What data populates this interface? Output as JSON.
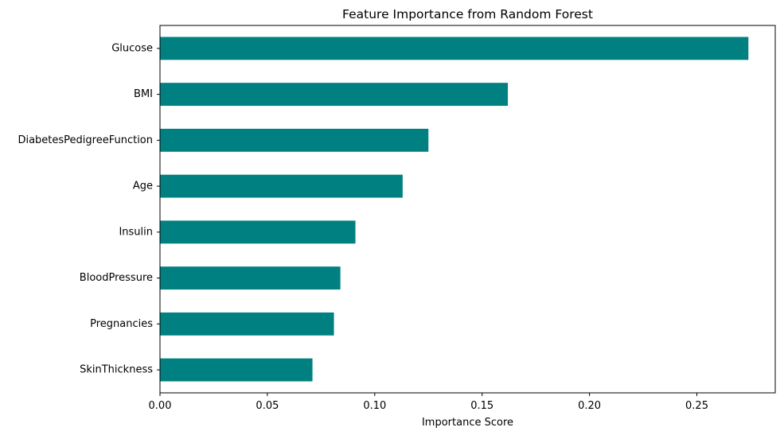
{
  "chart_data": {
    "type": "bar",
    "orientation": "horizontal",
    "title": "Feature Importance from Random Forest",
    "xlabel": "Importance Score",
    "ylabel": "",
    "categories": [
      "Glucose",
      "BMI",
      "DiabetesPedigreeFunction",
      "Age",
      "Insulin",
      "BloodPressure",
      "Pregnancies",
      "SkinThickness"
    ],
    "values": [
      0.274,
      0.162,
      0.125,
      0.113,
      0.091,
      0.084,
      0.081,
      0.071
    ],
    "xlim": [
      0,
      0.2865
    ],
    "xticks": [
      0.0,
      0.05,
      0.1,
      0.15,
      0.2,
      0.25
    ],
    "xtick_labels": [
      "0.00",
      "0.05",
      "0.10",
      "0.15",
      "0.20",
      "0.25"
    ],
    "grid": false,
    "legend": "none",
    "bar_color": "#008080"
  }
}
